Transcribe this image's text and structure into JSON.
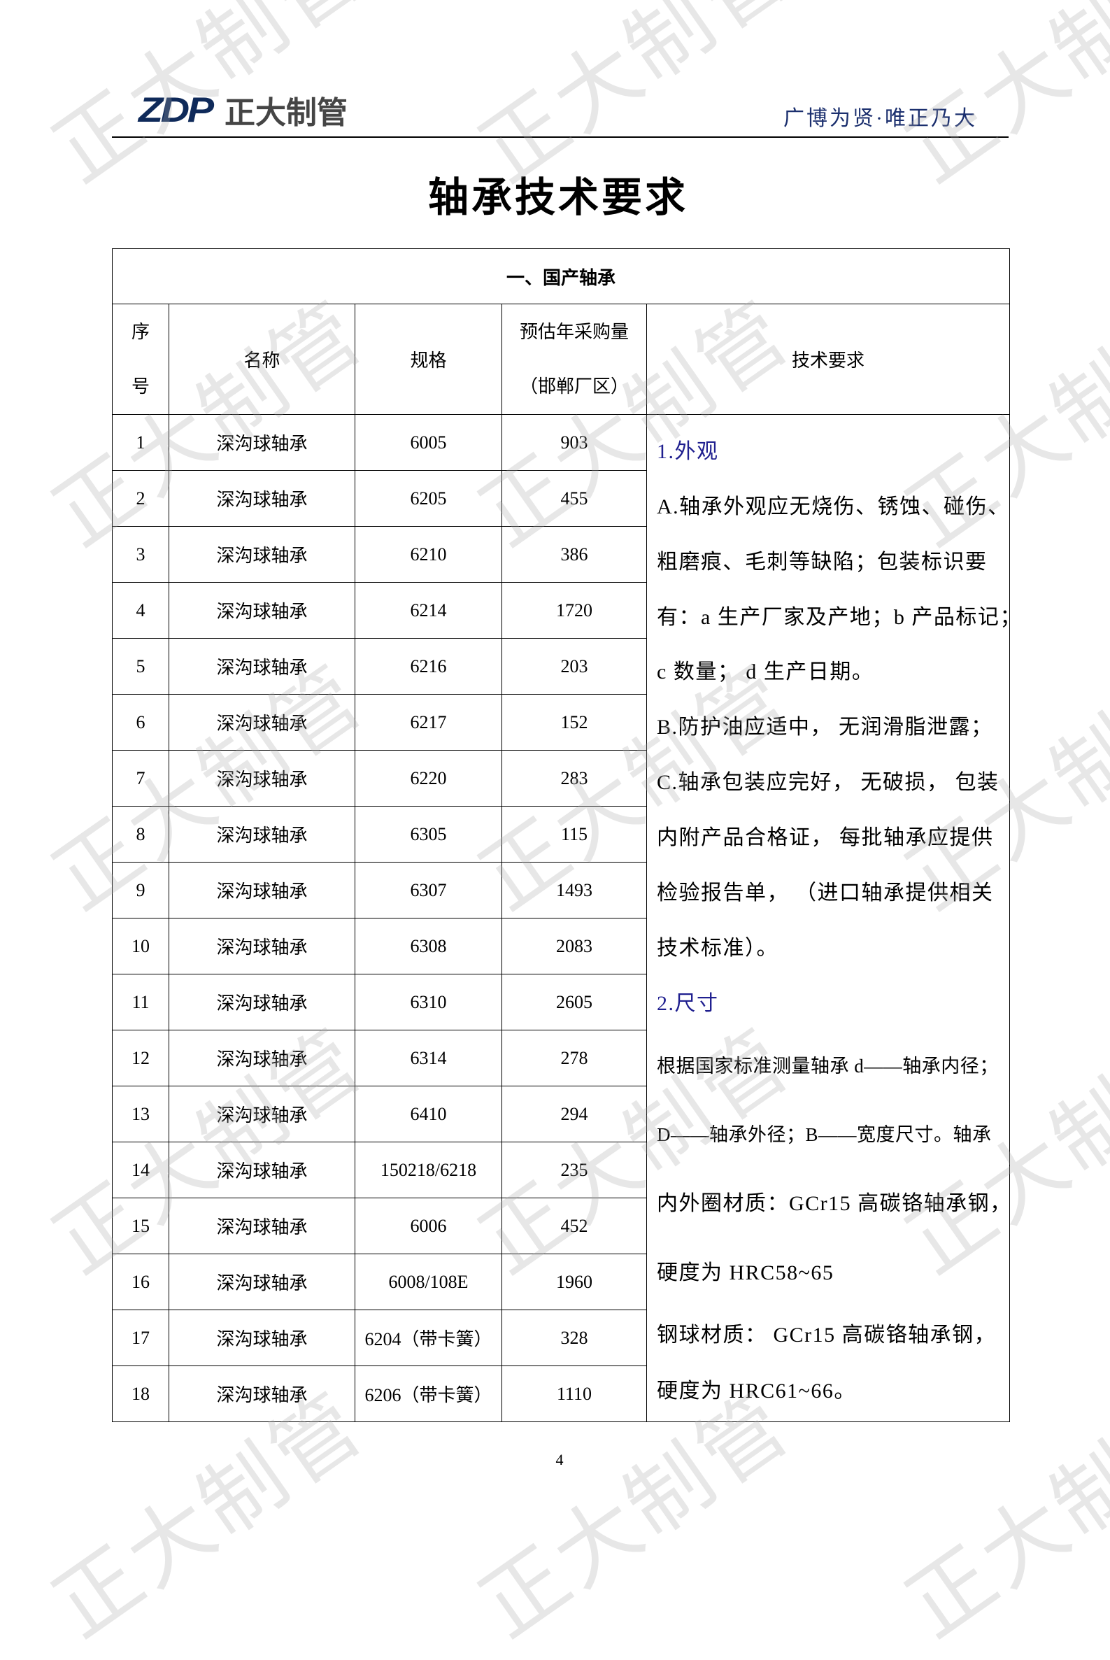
{
  "header": {
    "logo_text": "ZDP",
    "company": "正大制管",
    "slogan": "广博为贤·唯正乃大",
    "brand_color": "#0f2a5a"
  },
  "title": "轴承技术要求",
  "table": {
    "section_title": "一、国产轴承",
    "columns": {
      "index_line1": "序",
      "index_line2": "号",
      "name": "名称",
      "spec": "规格",
      "qty_line1": "预估年采购量",
      "qty_line2": "（邯郸厂区）",
      "req": "技术要求"
    },
    "rows": [
      {
        "no": "1",
        "name": "深沟球轴承",
        "spec": "6005",
        "qty": "903"
      },
      {
        "no": "2",
        "name": "深沟球轴承",
        "spec": "6205",
        "qty": "455"
      },
      {
        "no": "3",
        "name": "深沟球轴承",
        "spec": "6210",
        "qty": "386"
      },
      {
        "no": "4",
        "name": "深沟球轴承",
        "spec": "6214",
        "qty": "1720"
      },
      {
        "no": "5",
        "name": "深沟球轴承",
        "spec": "6216",
        "qty": "203"
      },
      {
        "no": "6",
        "name": "深沟球轴承",
        "spec": "6217",
        "qty": "152"
      },
      {
        "no": "7",
        "name": "深沟球轴承",
        "spec": "6220",
        "qty": "283"
      },
      {
        "no": "8",
        "name": "深沟球轴承",
        "spec": "6305",
        "qty": "115"
      },
      {
        "no": "9",
        "name": "深沟球轴承",
        "spec": "6307",
        "qty": "1493"
      },
      {
        "no": "10",
        "name": "深沟球轴承",
        "spec": "6308",
        "qty": "2083"
      },
      {
        "no": "11",
        "name": "深沟球轴承",
        "spec": "6310",
        "qty": "2605"
      },
      {
        "no": "12",
        "name": "深沟球轴承",
        "spec": "6314",
        "qty": "278"
      },
      {
        "no": "13",
        "name": "深沟球轴承",
        "spec": "6410",
        "qty": "294"
      },
      {
        "no": "14",
        "name": "深沟球轴承",
        "spec": "150218/6218",
        "qty": "235"
      },
      {
        "no": "15",
        "name": "深沟球轴承",
        "spec": "6006",
        "qty": "452"
      },
      {
        "no": "16",
        "name": "深沟球轴承",
        "spec": "6008/108E",
        "qty": "1960"
      },
      {
        "no": "17",
        "name": "深沟球轴承",
        "spec": "6204（带卡簧）",
        "qty": "328"
      },
      {
        "no": "18",
        "name": "深沟球轴承",
        "spec": "6206（带卡簧）",
        "qty": "1110"
      }
    ],
    "requirements": [
      "1.外观",
      "A.轴承外观应无烧伤、锈蚀、碰伤、",
      "粗磨痕、毛刺等缺陷；包装标识要",
      "有：a 生产厂家及产地；b 产品标记；",
      "c 数量； d 生产日期。",
      "B.防护油应适中， 无润滑脂泄露；",
      "C.轴承包装应完好， 无破损， 包装",
      "内附产品合格证， 每批轴承应提供",
      "检验报告单， （进口轴承提供相关",
      "技术标准）。",
      "2.尺寸",
      "根据国家标准测量轴承 d——轴承内径；",
      "D——轴承外径；B——宽度尺寸。轴承",
      "内外圈材质：GCr15  高碳铬轴承钢，",
      "硬度为 HRC58~65",
      "钢球材质： GCr15  高碳铬轴承钢，",
      "硬度为 HRC61~66。"
    ],
    "heading_color": "#1f1f8f"
  },
  "page_number": "4",
  "watermark": "正大制管"
}
